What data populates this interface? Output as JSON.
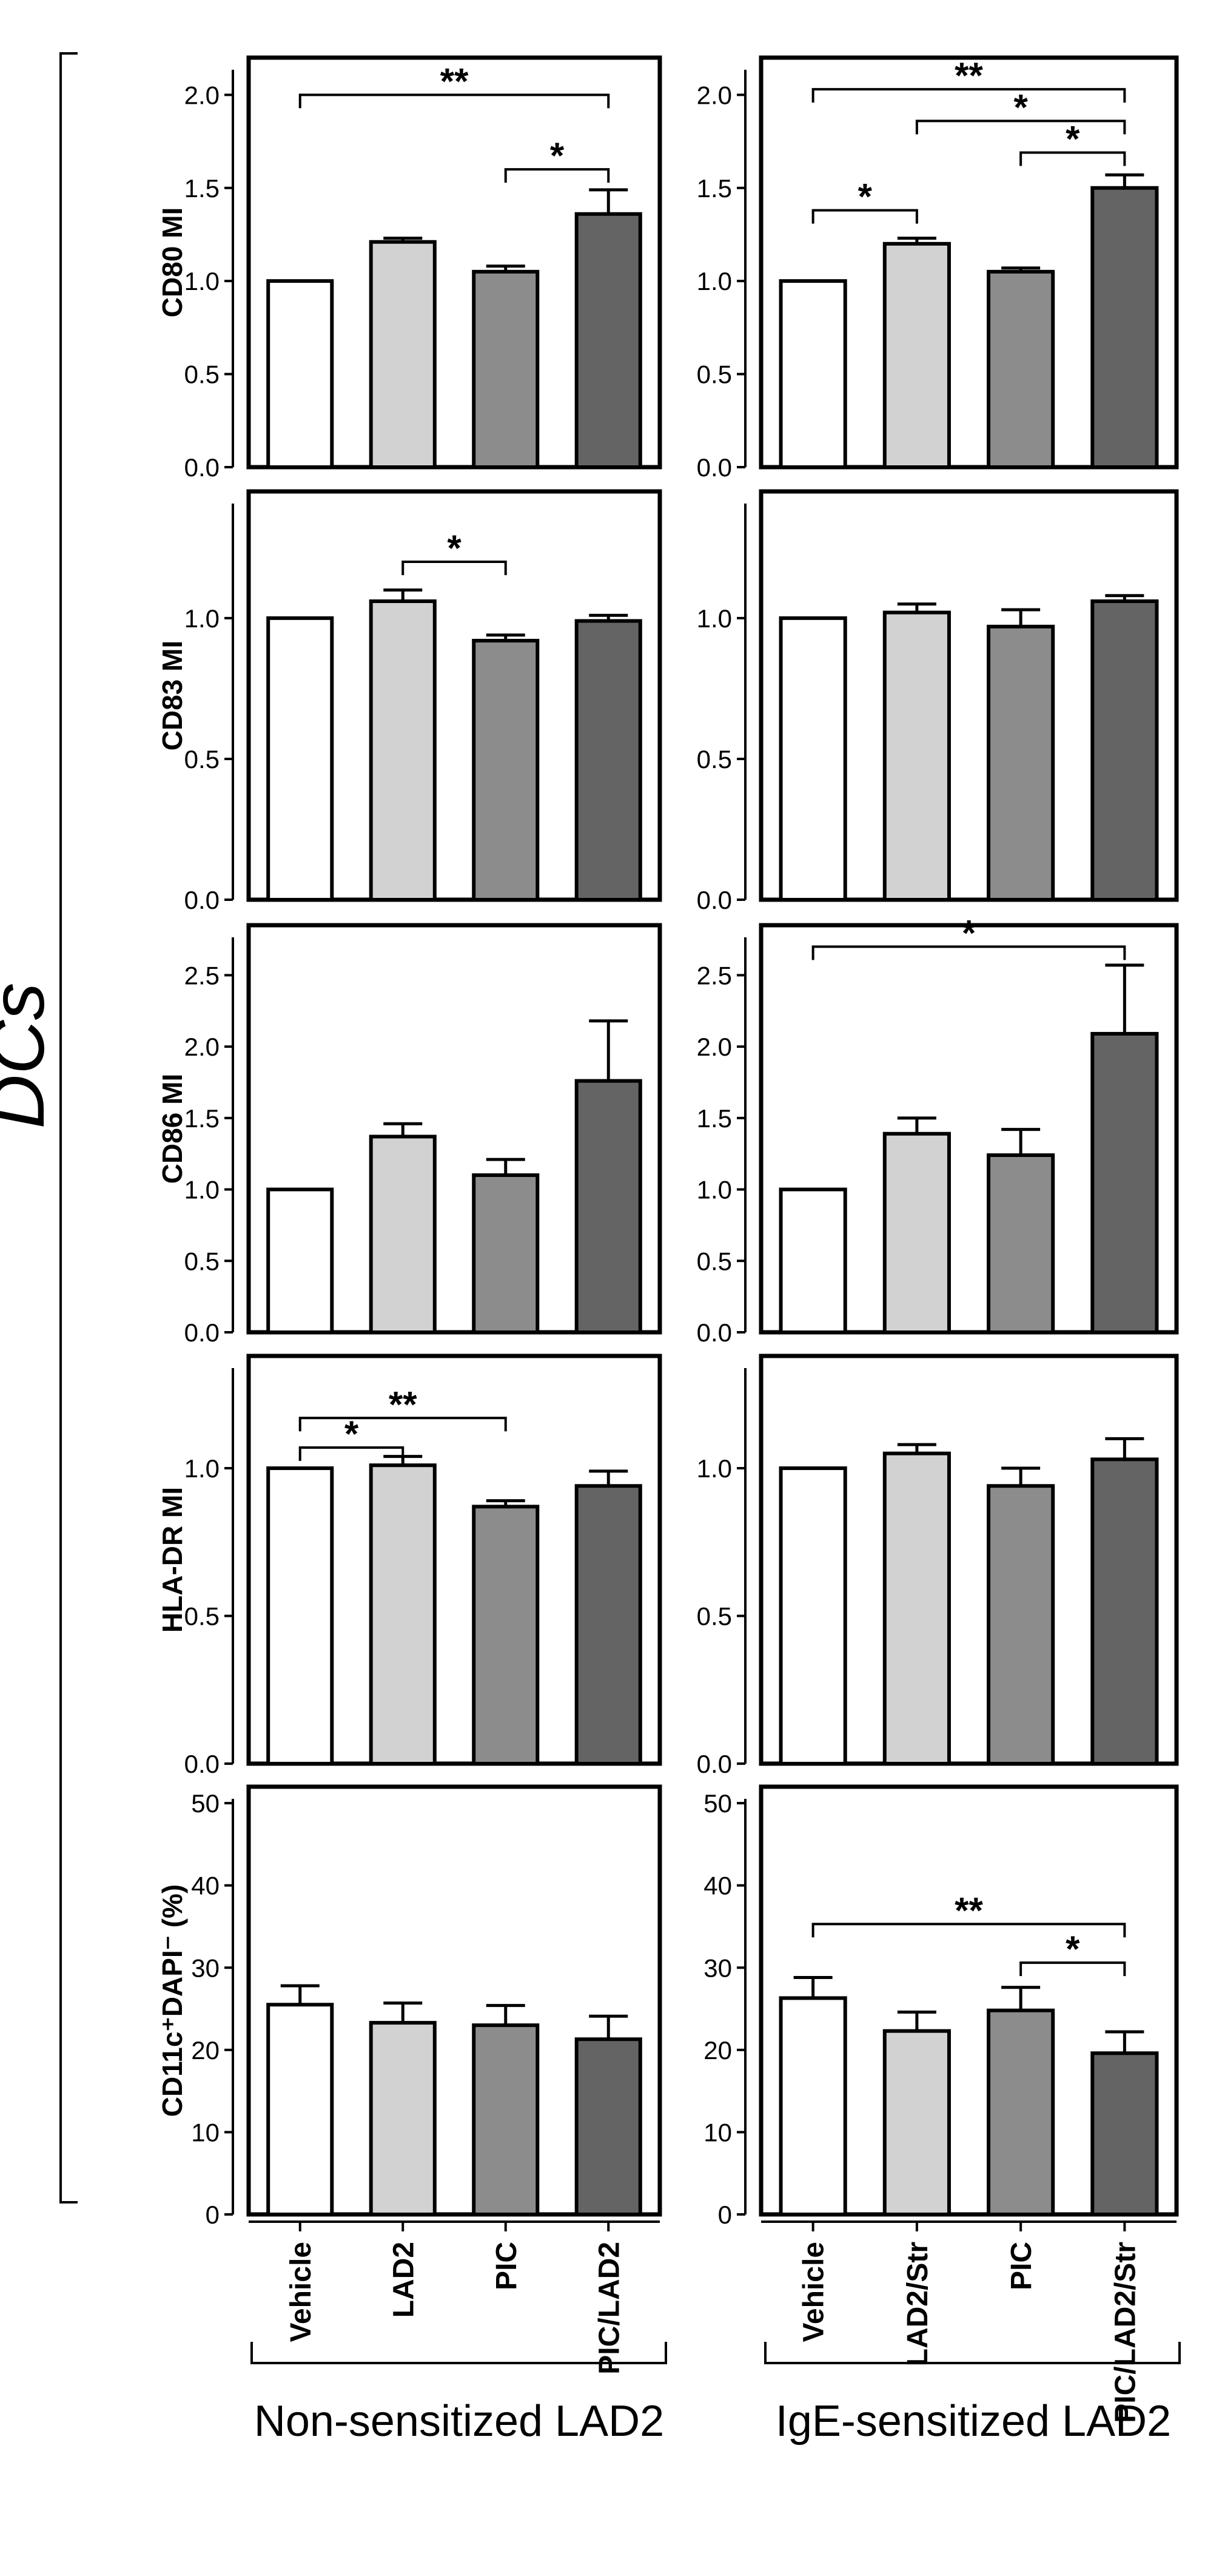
{
  "side_label": "DCs",
  "groups": [
    "Non-sensitized LAD2",
    "IgE-sensitized LAD2"
  ],
  "colors": {
    "bars": [
      "#ffffff",
      "#d2d2d2",
      "#8c8c8c",
      "#646464"
    ],
    "stroke": "#000000"
  },
  "chart_data": [
    {
      "type": "bar",
      "row": 0,
      "col": 0,
      "ylabel": "CD80 MI",
      "categories": [
        "Vehicle",
        "LAD2",
        "PIC",
        "PIC/LAD2"
      ],
      "values": [
        1.0,
        1.21,
        1.05,
        1.36
      ],
      "errors": [
        0,
        0.02,
        0.03,
        0.13
      ],
      "ylim": [
        0,
        2.2
      ],
      "ticks": [
        "0.0",
        "0.5",
        "1.0",
        "1.5",
        "2.0"
      ],
      "significance": [
        {
          "from": 0,
          "to": 3,
          "label": "**",
          "level": 2.0
        },
        {
          "from": 2,
          "to": 3,
          "label": "*",
          "level": 1.6
        }
      ]
    },
    {
      "type": "bar",
      "row": 0,
      "col": 1,
      "ylabel": "",
      "categories": [
        "Vehicle",
        "LAD2/Str",
        "PIC",
        "PIC/LAD2/Str"
      ],
      "values": [
        1.0,
        1.2,
        1.05,
        1.5
      ],
      "errors": [
        0,
        0.03,
        0.02,
        0.07
      ],
      "ylim": [
        0,
        2.2
      ],
      "ticks": [
        "0.0",
        "0.5",
        "1.0",
        "1.5",
        "2.0"
      ],
      "significance": [
        {
          "from": 0,
          "to": 3,
          "label": "**",
          "level": 2.03
        },
        {
          "from": 1,
          "to": 3,
          "label": "*",
          "level": 1.86
        },
        {
          "from": 2,
          "to": 3,
          "label": "*",
          "level": 1.69
        },
        {
          "from": 0,
          "to": 1,
          "label": "*",
          "level": 1.38
        }
      ]
    },
    {
      "type": "bar",
      "row": 1,
      "col": 0,
      "ylabel": "CD83 MI",
      "categories": [
        "Vehicle",
        "LAD2",
        "PIC",
        "PIC/LAD2"
      ],
      "values": [
        1.0,
        1.06,
        0.92,
        0.99
      ],
      "errors": [
        0,
        0.04,
        0.02,
        0.02
      ],
      "ylim": [
        0,
        1.45
      ],
      "ticks": [
        "0.0",
        "0.5",
        "1.0"
      ],
      "significance": [
        {
          "from": 1,
          "to": 2,
          "label": "*",
          "level": 1.2
        }
      ]
    },
    {
      "type": "bar",
      "row": 1,
      "col": 1,
      "ylabel": "",
      "categories": [
        "Vehicle",
        "LAD2/Str",
        "PIC",
        "PIC/LAD2/Str"
      ],
      "values": [
        1.0,
        1.02,
        0.97,
        1.06
      ],
      "errors": [
        0,
        0.03,
        0.06,
        0.02
      ],
      "ylim": [
        0,
        1.45
      ],
      "ticks": [
        "0.0",
        "0.5",
        "1.0"
      ],
      "significance": []
    },
    {
      "type": "bar",
      "row": 2,
      "col": 0,
      "ylabel": "CD86 MI",
      "categories": [
        "Vehicle",
        "LAD2",
        "PIC",
        "PIC/LAD2"
      ],
      "values": [
        1.0,
        1.37,
        1.1,
        1.76
      ],
      "errors": [
        0,
        0.09,
        0.11,
        0.42
      ],
      "ylim": [
        0,
        2.85
      ],
      "ticks": [
        "0.0",
        "0.5",
        "1.0",
        "1.5",
        "2.0",
        "2.5"
      ],
      "significance": []
    },
    {
      "type": "bar",
      "row": 2,
      "col": 1,
      "ylabel": "",
      "categories": [
        "Vehicle",
        "LAD2/Str",
        "PIC",
        "PIC/LAD2/Str"
      ],
      "values": [
        1.0,
        1.39,
        1.24,
        2.09
      ],
      "errors": [
        0,
        0.11,
        0.18,
        0.48
      ],
      "ylim": [
        0,
        2.85
      ],
      "ticks": [
        "0.0",
        "0.5",
        "1.0",
        "1.5",
        "2.0",
        "2.5"
      ],
      "significance": [
        {
          "from": 0,
          "to": 3,
          "label": "*",
          "level": 2.7
        }
      ]
    },
    {
      "type": "bar",
      "row": 3,
      "col": 0,
      "ylabel": "HLA-DR MI",
      "categories": [
        "Vehicle",
        "LAD2",
        "PIC",
        "PIC/LAD2"
      ],
      "values": [
        1.0,
        1.01,
        0.87,
        0.94
      ],
      "errors": [
        0,
        0.03,
        0.02,
        0.05
      ],
      "ylim": [
        0,
        1.38
      ],
      "ticks": [
        "0.0",
        "0.5",
        "1.0"
      ],
      "significance": [
        {
          "from": 0,
          "to": 2,
          "label": "**",
          "level": 1.17
        },
        {
          "from": 0,
          "to": 1,
          "label": "*",
          "level": 1.07
        }
      ]
    },
    {
      "type": "bar",
      "row": 3,
      "col": 1,
      "ylabel": "",
      "categories": [
        "Vehicle",
        "LAD2/Str",
        "PIC",
        "PIC/LAD2/Str"
      ],
      "values": [
        1.0,
        1.05,
        0.94,
        1.03
      ],
      "errors": [
        0,
        0.03,
        0.06,
        0.07
      ],
      "ylim": [
        0,
        1.38
      ],
      "ticks": [
        "0.0",
        "0.5",
        "1.0"
      ],
      "significance": []
    },
    {
      "type": "bar",
      "row": 4,
      "col": 0,
      "ylabel": "CD11c⁺DAPI⁻ (%)",
      "categories": [
        "Vehicle",
        "LAD2",
        "PIC",
        "PIC/LAD2"
      ],
      "values": [
        25.5,
        23.3,
        23.0,
        21.3
      ],
      "errors": [
        2.3,
        2.4,
        2.4,
        2.8
      ],
      "ylim": [
        0,
        52
      ],
      "ticks": [
        "0",
        "10",
        "20",
        "30",
        "40",
        "50"
      ],
      "significance": []
    },
    {
      "type": "bar",
      "row": 4,
      "col": 1,
      "ylabel": "",
      "categories": [
        "Vehicle",
        "LAD2/Str",
        "PIC",
        "PIC/LAD2/Str"
      ],
      "values": [
        26.3,
        22.3,
        24.8,
        19.6
      ],
      "errors": [
        2.5,
        2.3,
        2.8,
        2.6
      ],
      "ylim": [
        0,
        52
      ],
      "ticks": [
        "0",
        "10",
        "20",
        "30",
        "40",
        "50"
      ],
      "significance": [
        {
          "from": 0,
          "to": 3,
          "label": "**",
          "level": 35.3
        },
        {
          "from": 2,
          "to": 3,
          "label": "*",
          "level": 30.6
        }
      ]
    }
  ]
}
